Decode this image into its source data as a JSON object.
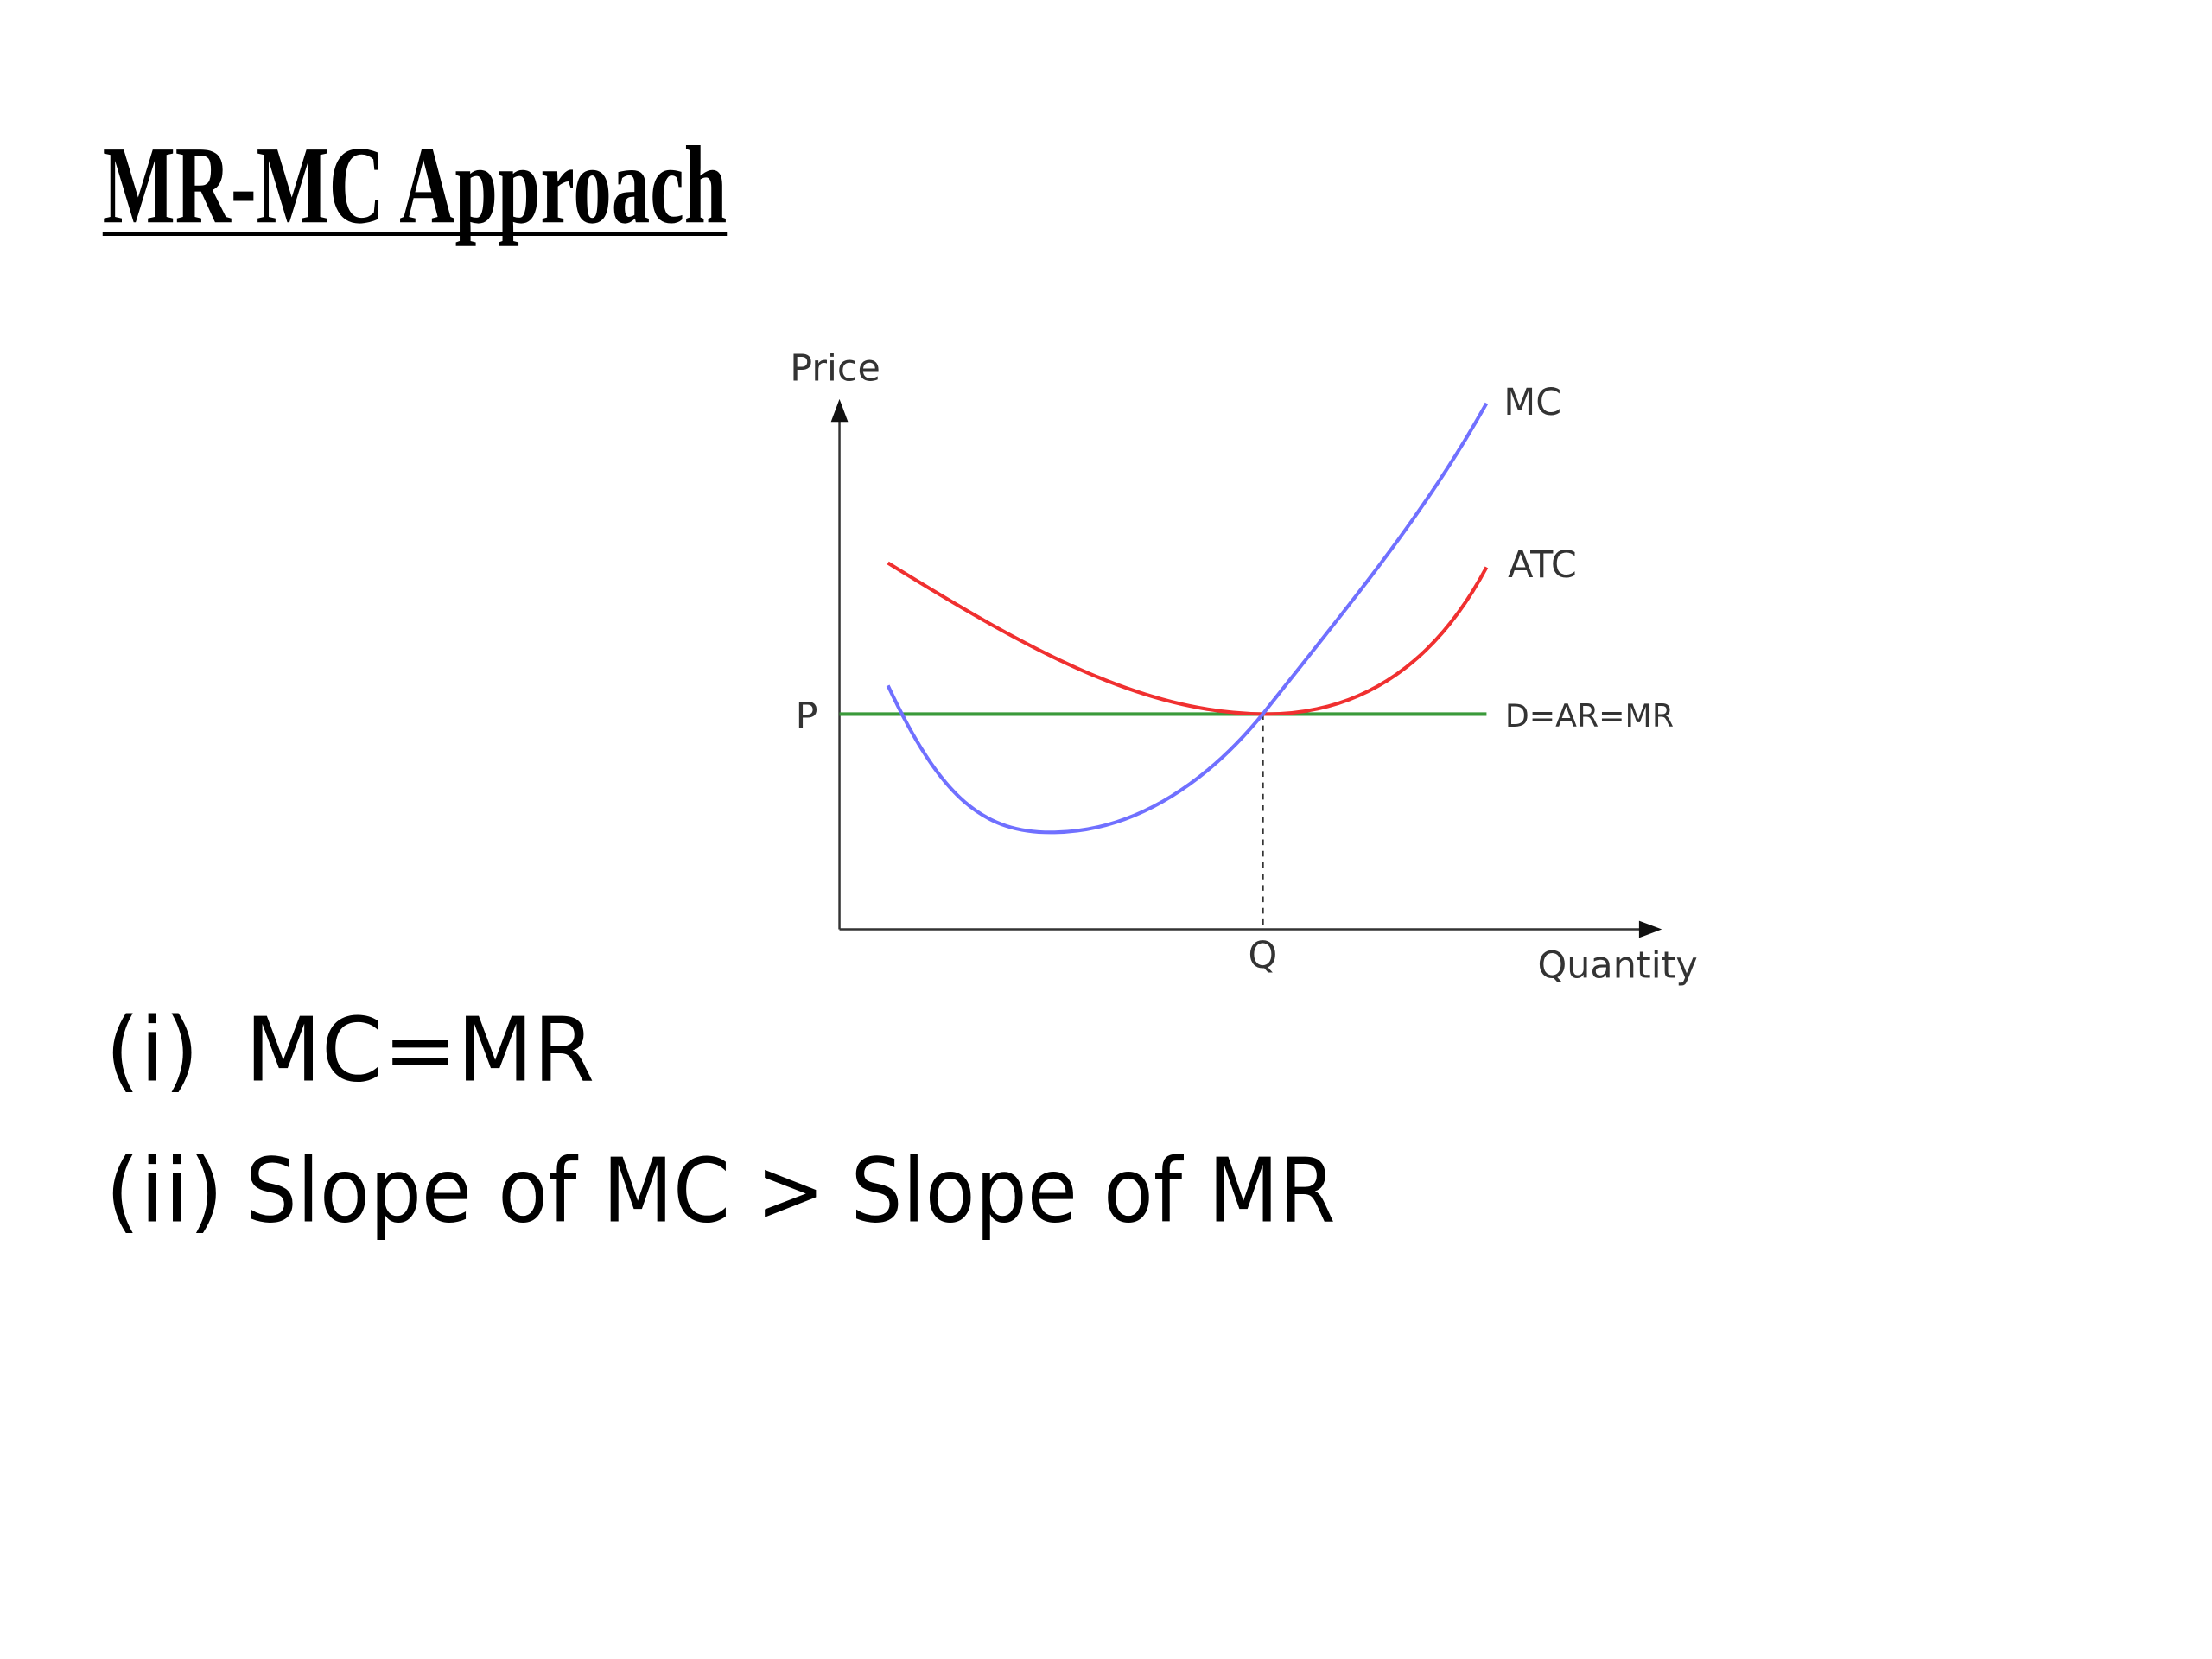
{
  "header": {
    "title": "MR-MC Approach"
  },
  "diagram": {
    "y_axis_label": "Price",
    "x_axis_label": "Quantity",
    "mc_label": "MC",
    "atc_label": "ATC",
    "demand_label": "D=AR=MR",
    "price_label": "P",
    "quantity_label": "Q"
  },
  "points": [
    {
      "marker": "(i)",
      "text": "MC=MR"
    },
    {
      "marker": "(ii)",
      "text": "Slope of MC > Slope of MR"
    }
  ]
}
